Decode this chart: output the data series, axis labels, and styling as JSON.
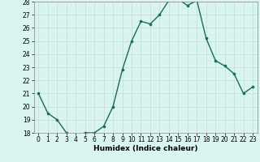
{
  "x": [
    0,
    1,
    2,
    3,
    4,
    5,
    6,
    7,
    8,
    9,
    10,
    11,
    12,
    13,
    14,
    15,
    16,
    17,
    18,
    19,
    20,
    21,
    22,
    23
  ],
  "y": [
    21,
    19.5,
    19,
    18,
    17.8,
    18,
    18,
    18.5,
    20,
    22.8,
    25,
    26.5,
    26.3,
    27,
    28.1,
    28.2,
    27.7,
    28.1,
    25.2,
    23.5,
    23.1,
    22.5,
    21.0,
    21.5
  ],
  "line_color": "#1a6b5a",
  "marker_color": "#1a6b5a",
  "bg_color": "#d8f5f0",
  "grid_major_color": "#c4d9d5",
  "grid_minor_color": "#daeae7",
  "xlabel": "Humidex (Indice chaleur)",
  "ylim": [
    18,
    28
  ],
  "xlim": [
    -0.5,
    23.5
  ],
  "yticks": [
    18,
    19,
    20,
    21,
    22,
    23,
    24,
    25,
    26,
    27,
    28
  ],
  "xticks": [
    0,
    1,
    2,
    3,
    4,
    5,
    6,
    7,
    8,
    9,
    10,
    11,
    12,
    13,
    14,
    15,
    16,
    17,
    18,
    19,
    20,
    21,
    22,
    23
  ],
  "tick_label_size": 5.5,
  "xlabel_size": 6.5,
  "line_width": 1.0,
  "marker_size": 2.2
}
